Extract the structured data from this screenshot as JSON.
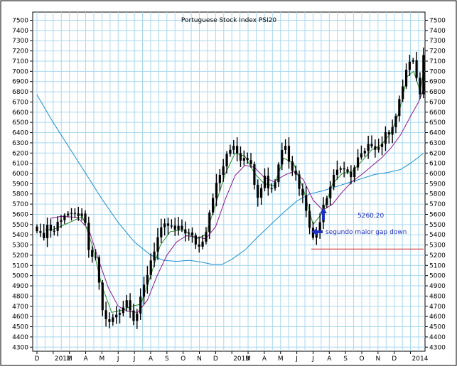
{
  "chart_data": {
    "type": "candlestick",
    "title": "Portuguese Stock Index PSI20",
    "y_ticks": [
      4300,
      4400,
      4500,
      4600,
      4700,
      4800,
      4900,
      5000,
      5100,
      5200,
      5300,
      5400,
      5500,
      5600,
      5700,
      5800,
      5900,
      6000,
      6100,
      6200,
      6300,
      6400,
      6500,
      6600,
      6700,
      6800,
      6900,
      7000,
      7100,
      7200,
      7300,
      7400,
      7500
    ],
    "ylim": [
      4260,
      7580
    ],
    "x_ticks": [
      {
        "label": "D",
        "idx": 0
      },
      {
        "label": "2012",
        "idx": 1
      },
      {
        "label": "M",
        "idx": 2
      },
      {
        "label": "A",
        "idx": 3
      },
      {
        "label": "M",
        "idx": 4
      },
      {
        "label": "J",
        "idx": 5
      },
      {
        "label": "J",
        "idx": 6
      },
      {
        "label": "A",
        "idx": 7
      },
      {
        "label": "S",
        "idx": 8
      },
      {
        "label": "O",
        "idx": 9
      },
      {
        "label": "N",
        "idx": 10
      },
      {
        "label": "D",
        "idx": 11
      },
      {
        "label": "2013",
        "idx": 12
      },
      {
        "label": "M",
        "idx": 13
      },
      {
        "label": "A",
        "idx": 14
      },
      {
        "label": "M",
        "idx": 15
      },
      {
        "label": "J",
        "idx": 16
      },
      {
        "label": "J",
        "idx": 17
      },
      {
        "label": "A",
        "idx": 18
      },
      {
        "label": "S",
        "idx": 19
      },
      {
        "label": "O",
        "idx": 20
      },
      {
        "label": "N",
        "idx": 21
      },
      {
        "label": "D",
        "idx": 22
      },
      {
        "label": "2014",
        "idx": 23
      }
    ],
    "x_range": [
      0,
      23.8
    ],
    "price_path": [
      [
        0,
        5480
      ],
      [
        0.3,
        5340
      ],
      [
        0.6,
        5500
      ],
      [
        1.0,
        5420
      ],
      [
        1.4,
        5560
      ],
      [
        1.8,
        5620
      ],
      [
        2.2,
        5560
      ],
      [
        2.6,
        5620
      ],
      [
        3.0,
        5480
      ],
      [
        3.3,
        5120
      ],
      [
        3.6,
        5200
      ],
      [
        4.0,
        4700
      ],
      [
        4.3,
        4520
      ],
      [
        4.6,
        4560
      ],
      [
        5.0,
        4650
      ],
      [
        5.3,
        4700
      ],
      [
        5.6,
        4780
      ],
      [
        6.0,
        4560
      ],
      [
        6.3,
        4700
      ],
      [
        6.6,
        4900
      ],
      [
        7.0,
        5150
      ],
      [
        7.5,
        5400
      ],
      [
        8.0,
        5500
      ],
      [
        8.5,
        5440
      ],
      [
        9.0,
        5460
      ],
      [
        9.5,
        5380
      ],
      [
        10.0,
        5280
      ],
      [
        10.4,
        5450
      ],
      [
        10.8,
        5780
      ],
      [
        11.1,
        5900
      ],
      [
        11.4,
        6050
      ],
      [
        11.8,
        6200
      ],
      [
        12.1,
        6300
      ],
      [
        12.5,
        6150
      ],
      [
        12.9,
        6200
      ],
      [
        13.2,
        6050
      ],
      [
        13.6,
        5800
      ],
      [
        14.0,
        5980
      ],
      [
        14.3,
        5850
      ],
      [
        14.6,
        5880
      ],
      [
        15.0,
        6200
      ],
      [
        15.3,
        6300
      ],
      [
        15.6,
        6100
      ],
      [
        16.0,
        5960
      ],
      [
        16.3,
        5800
      ],
      [
        16.6,
        5650
      ],
      [
        17.0,
        5350
      ],
      [
        17.3,
        5460
      ],
      [
        17.6,
        5700
      ],
      [
        18.0,
        5850
      ],
      [
        18.3,
        6000
      ],
      [
        18.6,
        6080
      ],
      [
        19.0,
        5980
      ],
      [
        19.4,
        6000
      ],
      [
        19.8,
        6150
      ],
      [
        20.2,
        6200
      ],
      [
        20.6,
        6300
      ],
      [
        21.0,
        6250
      ],
      [
        21.4,
        6350
      ],
      [
        21.8,
        6450
      ],
      [
        22.2,
        6600
      ],
      [
        22.5,
        6850
      ],
      [
        22.8,
        7050
      ],
      [
        23.1,
        7100
      ],
      [
        23.4,
        6950
      ],
      [
        23.6,
        6750
      ],
      [
        23.8,
        7200
      ]
    ],
    "ma_fast_path": [
      [
        0.5,
        5450
      ],
      [
        1.0,
        5450
      ],
      [
        2.0,
        5520
      ],
      [
        2.8,
        5580
      ],
      [
        3.4,
        5300
      ],
      [
        4.0,
        4900
      ],
      [
        4.6,
        4640
      ],
      [
        5.2,
        4660
      ],
      [
        5.8,
        4700
      ],
      [
        6.4,
        4720
      ],
      [
        7.0,
        5000
      ],
      [
        7.6,
        5300
      ],
      [
        8.2,
        5430
      ],
      [
        9.0,
        5450
      ],
      [
        9.8,
        5360
      ],
      [
        10.4,
        5400
      ],
      [
        11.0,
        5700
      ],
      [
        11.6,
        6000
      ],
      [
        12.2,
        6200
      ],
      [
        12.8,
        6170
      ],
      [
        13.4,
        6000
      ],
      [
        14.0,
        5900
      ],
      [
        14.6,
        5880
      ],
      [
        15.2,
        6150
      ],
      [
        15.8,
        6100
      ],
      [
        16.4,
        5850
      ],
      [
        17.0,
        5500
      ],
      [
        17.6,
        5620
      ],
      [
        18.2,
        5900
      ],
      [
        18.8,
        6000
      ],
      [
        19.4,
        6020
      ],
      [
        20.0,
        6120
      ],
      [
        20.6,
        6230
      ],
      [
        21.2,
        6280
      ],
      [
        21.8,
        6400
      ],
      [
        22.3,
        6600
      ],
      [
        22.8,
        6950
      ],
      [
        23.2,
        7000
      ],
      [
        23.6,
        6800
      ],
      [
        23.8,
        7000
      ]
    ],
    "ma_mid_path": [
      [
        0.8,
        5560
      ],
      [
        1.5,
        5580
      ],
      [
        2.5,
        5570
      ],
      [
        3.2,
        5450
      ],
      [
        3.8,
        5150
      ],
      [
        4.4,
        4880
      ],
      [
        5.0,
        4700
      ],
      [
        5.6,
        4650
      ],
      [
        6.2,
        4640
      ],
      [
        6.8,
        4760
      ],
      [
        7.4,
        5000
      ],
      [
        8.0,
        5200
      ],
      [
        8.6,
        5330
      ],
      [
        9.2,
        5390
      ],
      [
        9.8,
        5380
      ],
      [
        10.4,
        5360
      ],
      [
        11.0,
        5480
      ],
      [
        11.6,
        5750
      ],
      [
        12.2,
        5980
      ],
      [
        12.8,
        6080
      ],
      [
        13.4,
        6060
      ],
      [
        14.0,
        5960
      ],
      [
        14.6,
        5920
      ],
      [
        15.2,
        5980
      ],
      [
        15.8,
        6020
      ],
      [
        16.4,
        5940
      ],
      [
        17.0,
        5740
      ],
      [
        17.6,
        5640
      ],
      [
        18.2,
        5700
      ],
      [
        18.8,
        5820
      ],
      [
        19.4,
        5920
      ],
      [
        20.0,
        5990
      ],
      [
        20.6,
        6070
      ],
      [
        21.2,
        6150
      ],
      [
        21.8,
        6250
      ],
      [
        22.4,
        6380
      ],
      [
        23.0,
        6560
      ],
      [
        23.5,
        6700
      ],
      [
        23.8,
        6820
      ]
    ],
    "ma_slow_path": [
      [
        0,
        6770
      ],
      [
        1.0,
        6500
      ],
      [
        2.0,
        6250
      ],
      [
        3.0,
        6000
      ],
      [
        4.0,
        5750
      ],
      [
        5.0,
        5520
      ],
      [
        6.0,
        5330
      ],
      [
        7.0,
        5200
      ],
      [
        7.8,
        5150
      ],
      [
        8.6,
        5140
      ],
      [
        9.4,
        5150
      ],
      [
        10.2,
        5130
      ],
      [
        10.8,
        5110
      ],
      [
        11.4,
        5110
      ],
      [
        12.0,
        5160
      ],
      [
        12.8,
        5250
      ],
      [
        13.6,
        5380
      ],
      [
        14.4,
        5500
      ],
      [
        15.2,
        5620
      ],
      [
        16.0,
        5730
      ],
      [
        16.8,
        5800
      ],
      [
        17.6,
        5830
      ],
      [
        18.4,
        5870
      ],
      [
        19.2,
        5910
      ],
      [
        20.0,
        5950
      ],
      [
        20.8,
        5990
      ],
      [
        21.6,
        6010
      ],
      [
        22.4,
        6040
      ],
      [
        23.0,
        6100
      ],
      [
        23.5,
        6160
      ],
      [
        23.8,
        6200
      ]
    ],
    "candle_color": "#000000",
    "ma_fast_color": "#2e8b2e",
    "ma_mid_color": "#8b1a8b",
    "ma_slow_color": "#1a8fd0",
    "annotations": {
      "gap_value_label": "5260,20",
      "gap_value": 5260.2,
      "gap_text": "segundo maior gap down",
      "line_color": "#cc2222",
      "text_color": "#1f2fbf"
    },
    "grid": true,
    "grid_color": "#a8d8f0"
  }
}
